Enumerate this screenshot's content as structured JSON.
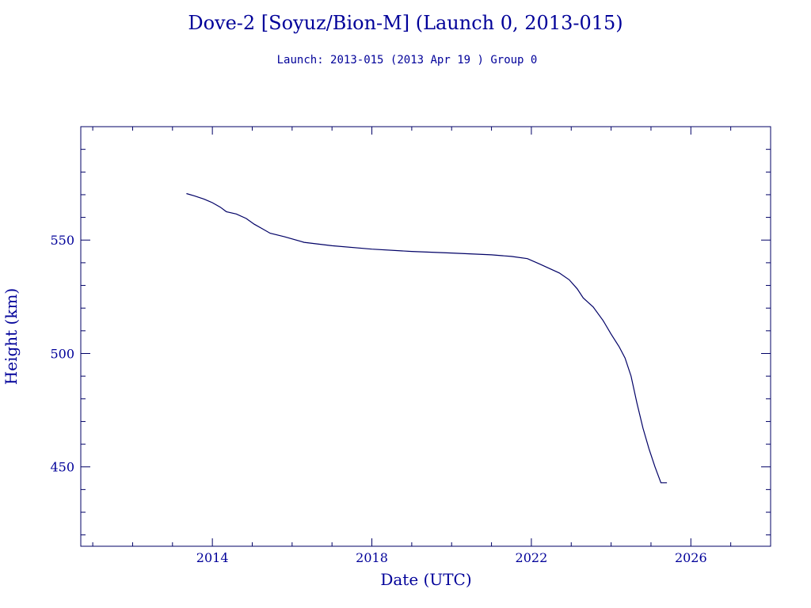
{
  "title": "Dove-2 [Soyuz/Bion-M] (Launch 0, 2013-015)",
  "subtitle": "Launch: 2013-015  (2013 Apr 19 )  Group 0",
  "chart_data": {
    "type": "line",
    "title": "Dove-2 [Soyuz/Bion-M] (Launch 0, 2013-015)",
    "subtitle": "Launch: 2013-015  (2013 Apr 19 )  Group 0",
    "xlabel": "Date (UTC)",
    "ylabel": "Height (km)",
    "xlim": [
      2010.7,
      2028.0
    ],
    "ylim": [
      415,
      600
    ],
    "x_ticks": [
      2014,
      2018,
      2022,
      2026
    ],
    "x_tick_labels": [
      "2014",
      "2018",
      "2022",
      "2026"
    ],
    "y_ticks": [
      450,
      500,
      550
    ],
    "y_tick_labels": [
      "450",
      "500",
      "550"
    ],
    "grid": false,
    "color": "#000066",
    "series": [
      {
        "x": [
          2013.35,
          2013.55,
          2013.8,
          2014.0,
          2014.2,
          2014.35,
          2014.6,
          2014.85,
          2015.05,
          2015.25,
          2015.45,
          2015.8,
          2016.3,
          2017.0,
          2018.0,
          2019.0,
          2020.0,
          2021.0,
          2021.5,
          2021.9,
          2022.2,
          2022.45,
          2022.7,
          2022.95,
          2023.15,
          2023.3,
          2023.55,
          2023.8,
          2024.0,
          2024.2,
          2024.35,
          2024.5,
          2024.65,
          2024.8,
          2024.95,
          2025.1,
          2025.25,
          2025.4
        ],
        "y": [
          570.5,
          569.5,
          568.0,
          566.5,
          564.5,
          562.5,
          561.5,
          559.5,
          557.0,
          555.0,
          553.0,
          551.5,
          549.0,
          547.5,
          546.0,
          545.0,
          544.3,
          543.5,
          542.8,
          541.8,
          539.5,
          537.5,
          535.5,
          532.5,
          528.5,
          524.5,
          520.5,
          514.5,
          508.5,
          503.0,
          498.0,
          490.0,
          478.0,
          467.0,
          458.0,
          450.0,
          443.0,
          443.0
        ]
      }
    ]
  }
}
